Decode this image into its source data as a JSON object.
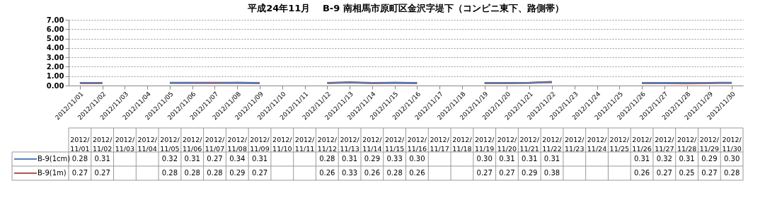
{
  "chart_data": {
    "type": "line",
    "title": "平成24年11月　 B-9 南相馬市原町区金沢字堤下（コンビニ東下、路側帯）",
    "categories": [
      "2012/11/01",
      "2012/11/02",
      "2012/11/03",
      "2012/11/04",
      "2012/11/05",
      "2012/11/06",
      "2012/11/07",
      "2012/11/08",
      "2012/11/09",
      "2012/11/10",
      "2012/11/11",
      "2012/11/12",
      "2012/11/13",
      "2012/11/14",
      "2012/11/15",
      "2012/11/16",
      "2012/11/17",
      "2012/11/18",
      "2012/11/19",
      "2012/11/20",
      "2012/11/21",
      "2012/11/22",
      "2012/11/23",
      "2012/11/24",
      "2012/11/25",
      "2012/11/26",
      "2012/11/27",
      "2012/11/28",
      "2012/11/29",
      "2012/11/30"
    ],
    "series": [
      {
        "name": "B-9(1cm)",
        "color": "#4f81bd",
        "values": [
          0.28,
          0.31,
          null,
          null,
          0.32,
          0.31,
          0.27,
          0.34,
          0.31,
          null,
          null,
          0.28,
          0.31,
          0.29,
          0.33,
          0.3,
          null,
          null,
          0.3,
          0.31,
          0.31,
          0.31,
          null,
          null,
          null,
          0.31,
          0.32,
          0.31,
          0.29,
          0.3
        ],
        "value_labels": [
          "0.28",
          "0.31",
          null,
          null,
          "0.32",
          "0.31",
          "0.27",
          "0.34",
          "0.31",
          null,
          null,
          "0.28",
          "0.31",
          "0.29",
          "0.33",
          "0.30",
          null,
          null,
          "0.30",
          "0.31",
          "0.31",
          "0.31",
          null,
          null,
          null,
          "0.31",
          "0.32",
          "0.31",
          "0.29",
          "0.30"
        ]
      },
      {
        "name": "B-9(1m)",
        "color": "#c0504d",
        "values": [
          0.27,
          0.27,
          null,
          null,
          0.28,
          0.28,
          0.28,
          0.29,
          0.27,
          null,
          null,
          0.26,
          0.33,
          0.26,
          0.28,
          0.26,
          null,
          null,
          0.27,
          0.27,
          0.29,
          0.38,
          null,
          null,
          null,
          0.26,
          0.27,
          0.25,
          0.27,
          0.28
        ],
        "value_labels": [
          "0.27",
          "0.27",
          null,
          null,
          "0.28",
          "0.28",
          "0.28",
          "0.29",
          "0.27",
          null,
          null,
          "0.26",
          "0.33",
          "0.26",
          "0.28",
          "0.26",
          null,
          null,
          "0.27",
          "0.27",
          "0.29",
          "0.38",
          null,
          null,
          null,
          "0.26",
          "0.27",
          "0.25",
          "0.27",
          "0.28"
        ]
      }
    ],
    "ylim": [
      0,
      7
    ],
    "yticks": [
      {
        "value": 0,
        "label": "0.00"
      },
      {
        "value": 1,
        "label": "1.00"
      },
      {
        "value": 2,
        "label": "2.00"
      },
      {
        "value": 3,
        "label": "3.00"
      },
      {
        "value": 4,
        "label": "4.00"
      },
      {
        "value": 5,
        "label": "5.00"
      },
      {
        "value": 6,
        "label": "6.00"
      },
      {
        "value": 7,
        "label": "7.00"
      }
    ],
    "grid": "y",
    "legend": "bottom",
    "marker": "none",
    "line_style": "solid"
  }
}
